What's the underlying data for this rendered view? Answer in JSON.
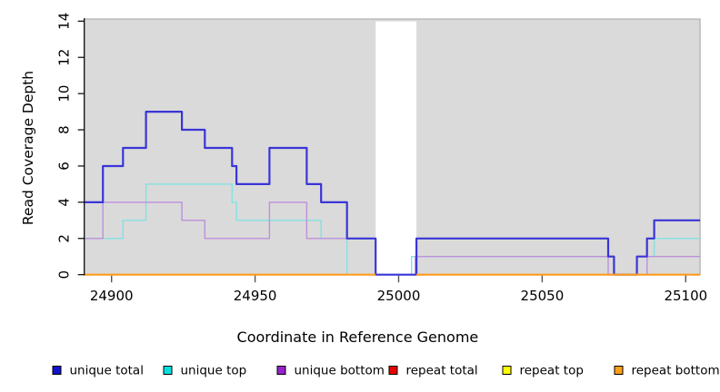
{
  "chart_data": {
    "type": "line",
    "subtype": "step-coverage-plot",
    "title": "",
    "xlabel": "Coordinate in Reference Genome",
    "ylabel": "Read Coverage Depth",
    "x_range": [
      24890.5,
      25105
    ],
    "ylim": [
      0,
      14
    ],
    "x_ticks": [
      24900,
      24950,
      25000,
      25050,
      25100
    ],
    "y_ticks": [
      0,
      2,
      4,
      6,
      8,
      10,
      12,
      14
    ],
    "grid": false,
    "legend_position": "bottom",
    "background": {
      "fill": "#dadada",
      "border": "#aeaeae",
      "full_span": [
        24890.5,
        25105
      ],
      "zero_coverage_gap": [
        24992,
        25006.2
      ]
    },
    "series": [
      {
        "name": "repeat total",
        "line_color": "#e00000",
        "width": 1.4,
        "steps": [
          [
            24890.5,
            0
          ]
        ],
        "end": 25105
      },
      {
        "name": "repeat top",
        "line_color": "#ffff00",
        "width": 1.4,
        "steps": [
          [
            24890.5,
            0
          ]
        ],
        "end": 25105
      },
      {
        "name": "unique top",
        "line_color": "#82e2e2",
        "width": 1.4,
        "steps": [
          [
            24890.5,
            2
          ],
          [
            24904,
            3
          ],
          [
            24912,
            5
          ],
          [
            24942,
            4
          ],
          [
            24943.5,
            3
          ],
          [
            24973,
            2
          ],
          [
            24982,
            0
          ],
          [
            25004.5,
            1
          ],
          [
            25075,
            0
          ],
          [
            25086.5,
            1
          ],
          [
            25089,
            2
          ]
        ],
        "end": 25105
      },
      {
        "name": "unique bottom",
        "line_color": "#bd90dc",
        "width": 1.4,
        "steps": [
          [
            24890.5,
            2
          ],
          [
            24897,
            4
          ],
          [
            24924.5,
            3
          ],
          [
            24932.5,
            2
          ],
          [
            24955,
            4
          ],
          [
            24968,
            2
          ],
          [
            24992,
            0
          ],
          [
            25005.8,
            1
          ],
          [
            25073,
            0
          ],
          [
            25086.5,
            1
          ]
        ],
        "end": 25105
      },
      {
        "name": "unique total",
        "line_color": "#3a35d6",
        "width": 2.2,
        "steps": [
          [
            24890.5,
            4
          ],
          [
            24897,
            6
          ],
          [
            24904,
            7
          ],
          [
            24912,
            9
          ],
          [
            24924.5,
            8
          ],
          [
            24932.5,
            7
          ],
          [
            24942,
            6
          ],
          [
            24943.5,
            5
          ],
          [
            24955,
            7
          ],
          [
            24968,
            5
          ],
          [
            24973,
            4
          ],
          [
            24982,
            2
          ],
          [
            24992,
            0
          ],
          [
            25006.2,
            2
          ],
          [
            25073,
            1
          ],
          [
            25075,
            0
          ],
          [
            25083,
            1
          ],
          [
            25086.5,
            2
          ],
          [
            25089,
            3
          ]
        ],
        "end": 25105
      },
      {
        "name": "repeat bottom",
        "line_color": "#ff9c1e",
        "width": 2.2,
        "steps": [
          [
            24890.5,
            0
          ]
        ],
        "end": 25105,
        "gap": [
          24992,
          25006.2
        ]
      }
    ],
    "legend": [
      {
        "label": "unique total",
        "swatch_color": "#1212cc"
      },
      {
        "label": "unique top",
        "swatch_color": "#00e0e0"
      },
      {
        "label": "unique bottom",
        "swatch_color": "#9922cc"
      },
      {
        "label": "repeat total",
        "swatch_color": "#e80000"
      },
      {
        "label": "repeat top",
        "swatch_color": "#ffff00"
      },
      {
        "label": "repeat bottom",
        "swatch_color": "#ffa018"
      }
    ]
  }
}
